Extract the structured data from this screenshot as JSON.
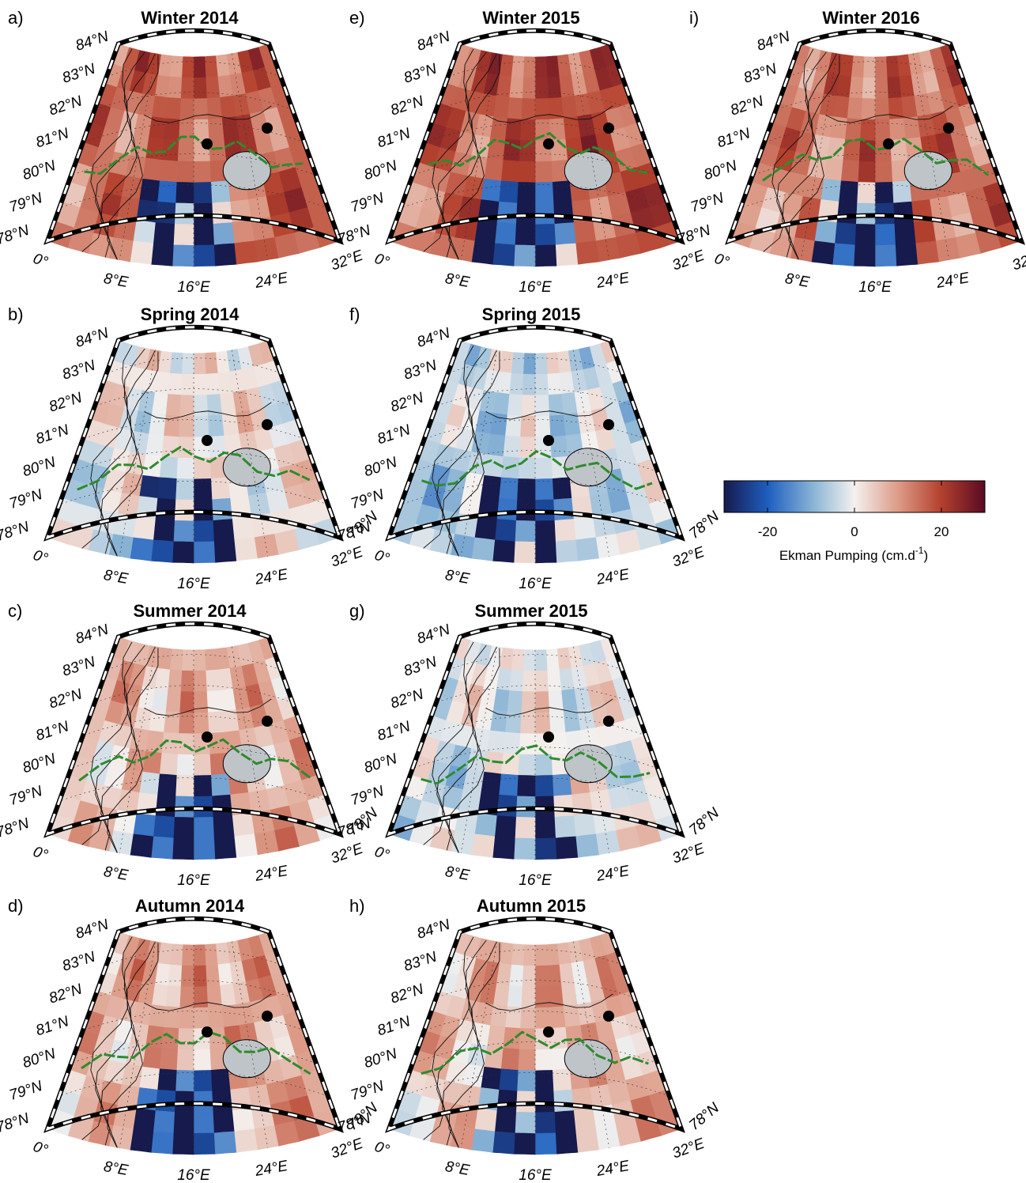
{
  "panels": [
    {
      "label": "a)",
      "title": "Winter 2014"
    },
    {
      "label": "b)",
      "title": "Spring 2014",
      "right_lat_label": "78°N"
    },
    {
      "label": "c)",
      "title": "Summer 2014",
      "right_lat_label": "78°N"
    },
    {
      "label": "d)",
      "title": "Autumn 2014",
      "right_lat_label": "78°N"
    },
    {
      "label": "e)",
      "title": "Winter 2015"
    },
    {
      "label": "f)",
      "title": "Spring 2015",
      "right_lat_label": "78°N"
    },
    {
      "label": "g)",
      "title": "Summer 2015",
      "right_lat_label": "78°N"
    },
    {
      "label": "h)",
      "title": "Autumn 2015",
      "right_lat_label": "78°N"
    },
    {
      "label": "i)",
      "title": "Winter 2016"
    }
  ],
  "map_axes": {
    "lat_labels": [
      "84°N",
      "83°N",
      "82°N",
      "81°N",
      "80°N",
      "79°N",
      "78°N"
    ],
    "lon_labels": [
      "0°",
      "8°E",
      "16°E",
      "24°E",
      "32°E"
    ]
  },
  "colorbar": {
    "label": "Ekman Pumping (cm.d",
    "label_sup": "-1",
    "label_end": ")",
    "lim": [
      -30,
      30
    ],
    "ticks": [
      -20,
      0,
      20
    ]
  }
}
